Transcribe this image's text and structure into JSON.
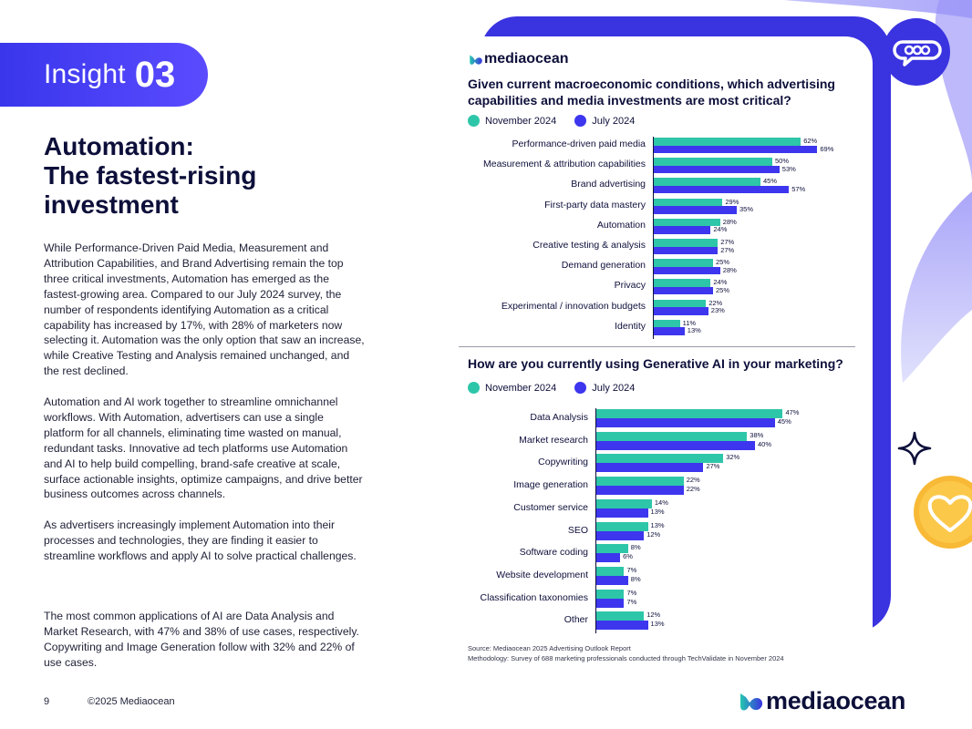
{
  "insight": {
    "label": "Insight",
    "number": "03"
  },
  "headline": [
    "Automation:",
    "The fastest-rising",
    "investment"
  ],
  "paragraphs": [
    "While Performance-Driven Paid Media, Measurement and Attribution Capabilities, and Brand Advertising remain the top three critical investments, Automation has emerged as the fastest-growing area. Compared to our July 2024 survey, the number of respondents identifying Automation as a critical capability has increased by 17%, with 28% of marketers now selecting it. Automation was the only option that saw an increase, while Creative Testing and Analysis remained unchanged, and the rest declined.",
    "Automation and AI work together to streamline omnichannel workflows. With Automation, advertisers can use a single platform for all channels, eliminating time wasted on manual, redundant tasks. Innovative ad tech platforms use Automation and AI to help build compelling, brand-safe creative at scale, surface actionable insights, optimize campaigns, and drive better business outcomes across channels.",
    "As advertisers increasingly implement Automation into their processes and technologies, they are finding it easier to streamline workflows and apply AI to solve practical challenges.",
    "The most common applications of AI are Data Analysis and Market Research, with 47% and 38% of use cases, respectively. Copywriting and Image Generation follow with 32% and 22% of use cases."
  ],
  "footer": {
    "page": "9",
    "copyright": "©2025 Mediaocean",
    "brand": "mediaocean"
  },
  "card": {
    "brand": "mediaocean",
    "source": "Source: Mediaocean 2025 Advertising Outlook Report",
    "methodology": "Methodology: Survey of 688 marketing professionals conducted through TechValidate in November 2024"
  },
  "colors": {
    "teal": "#2ec6a9",
    "blue": "#3d36ee",
    "gray_light": "#b3b3b3",
    "gray_dark": "#6e6e6e",
    "accent": "#3a33e0",
    "heart": "#f8b936"
  },
  "chart_data": [
    {
      "type": "bar",
      "orientation": "horizontal",
      "title": "Given current macroeconomic conditions, which advertising capabilities and media investments are most critical?",
      "categories": [
        "Performance-driven paid media",
        "Measurement & attribution capabilities",
        "Brand advertising",
        "First-party data mastery",
        "Automation",
        "Creative testing & analysis",
        "Demand generation",
        "Privacy",
        "Experimental / innovation budgets",
        "Identity"
      ],
      "series": [
        {
          "name": "November 2024",
          "values": [
            62,
            50,
            45,
            29,
            28,
            27,
            25,
            24,
            22,
            11
          ]
        },
        {
          "name": "July 2024",
          "values": [
            69,
            53,
            57,
            35,
            24,
            27,
            28,
            25,
            23,
            13
          ]
        }
      ],
      "xlim": [
        0,
        100
      ],
      "value_suffix": "%"
    },
    {
      "type": "bar",
      "orientation": "horizontal",
      "title": "How are you currently using Generative AI in your marketing?",
      "categories": [
        "Data Analysis",
        "Market research",
        "Copywriting",
        "Image generation",
        "Customer service",
        "SEO",
        "Software coding",
        "Website development",
        "Classification taxonomies",
        "Other"
      ],
      "series": [
        {
          "name": "November 2024",
          "values": [
            47,
            38,
            32,
            22,
            14,
            13,
            8,
            7,
            7,
            12
          ]
        },
        {
          "name": "July 2024",
          "values": [
            45,
            40,
            27,
            22,
            13,
            12,
            6,
            8,
            7,
            13
          ]
        }
      ],
      "xlim": [
        0,
        100
      ],
      "value_suffix": "%"
    }
  ]
}
